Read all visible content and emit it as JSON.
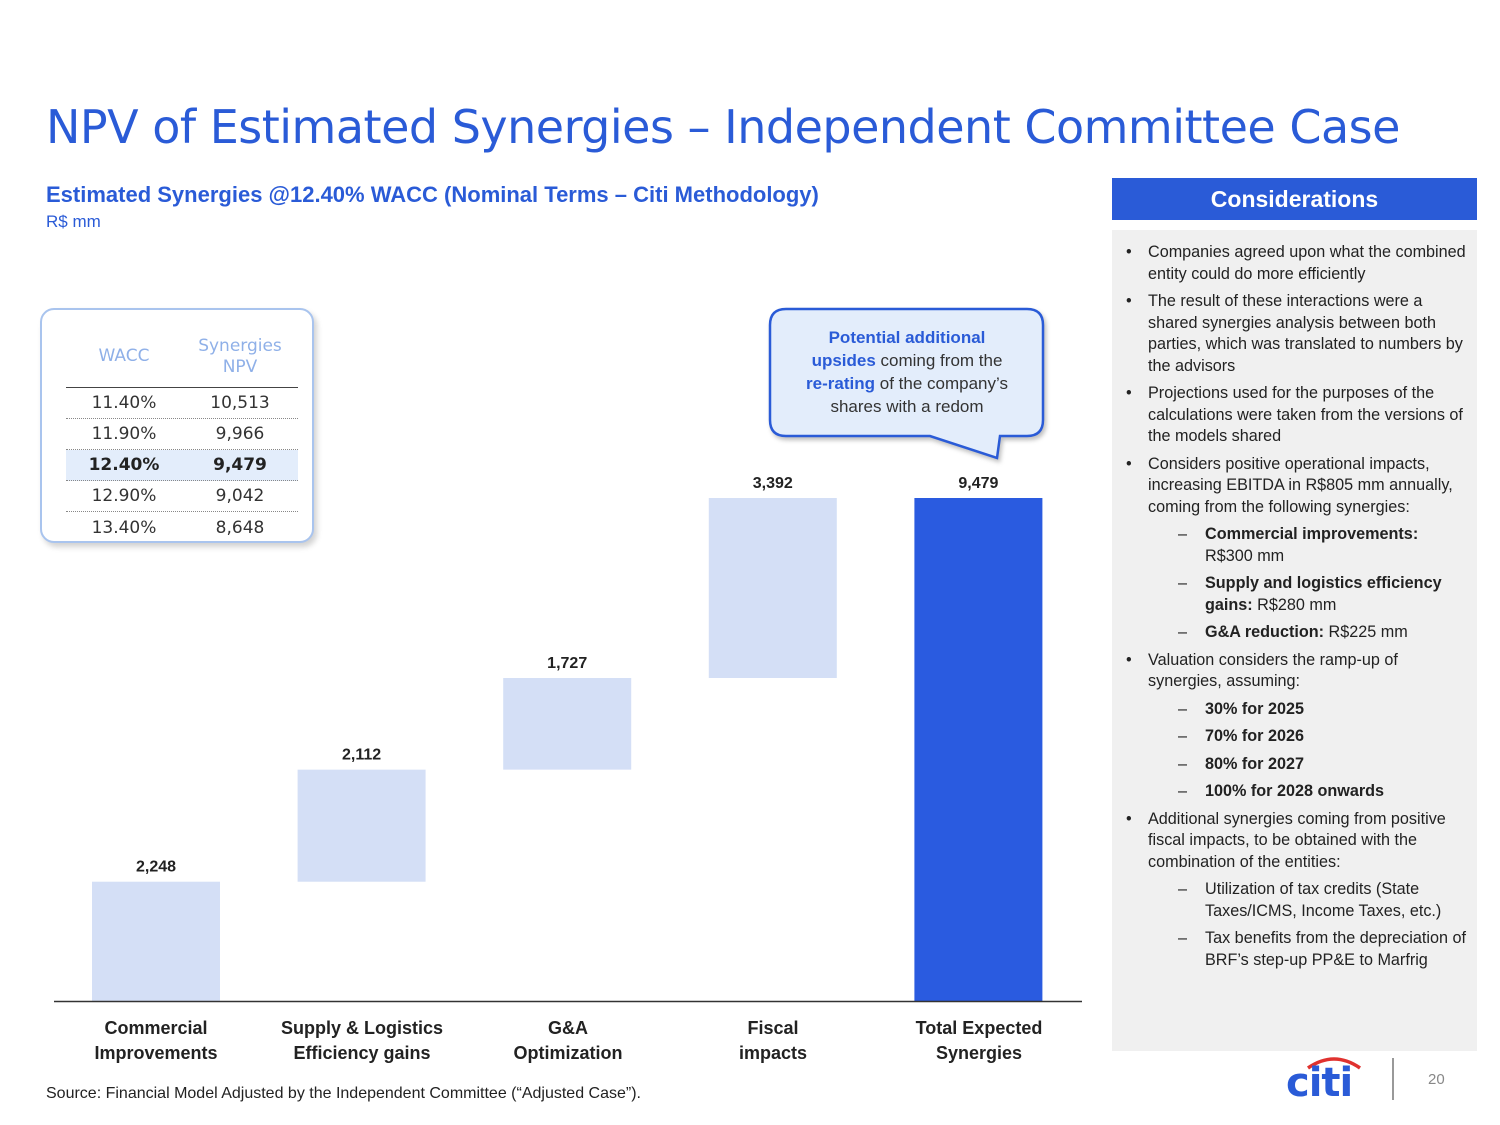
{
  "title": "NPV of Estimated Synergies – Independent Committee Case",
  "subtitle": "Estimated Synergies @12.40% WACC (Nominal Terms – Citi Methodology)",
  "unit": "R$ mm",
  "wacc_table": {
    "headers": [
      "WACC",
      "Synergies NPV"
    ],
    "rows": [
      {
        "wacc": "11.40%",
        "npv": "10,513"
      },
      {
        "wacc": "11.90%",
        "npv": "9,966"
      },
      {
        "wacc": "12.40%",
        "npv": "9,479"
      },
      {
        "wacc": "12.90%",
        "npv": "9,042"
      },
      {
        "wacc": "13.40%",
        "npv": "8,648"
      }
    ]
  },
  "callout": {
    "line1_bold": "Potential additional",
    "line2_bold": "upsides",
    "line2_rest": " coming from the",
    "line3_bold": "re-rating",
    "line3_rest": " of the company’s",
    "line4": "shares with a redom"
  },
  "chart_data": {
    "type": "bar",
    "subtype": "waterfall",
    "title": "Estimated Synergies @12.40% WACC (Nominal Terms – Citi Methodology)",
    "ylabel": "R$ mm",
    "categories": [
      "Commercial Improvements",
      "Supply & Logistics Efficiency gains",
      "G&A Optimization",
      "Fiscal impacts",
      "Total Expected Synergies"
    ],
    "category_lines": [
      [
        "Commercial",
        "Improvements"
      ],
      [
        "Supply & Logistics",
        "Efficiency gains"
      ],
      [
        "G&A",
        "Optimization"
      ],
      [
        "Fiscal",
        "impacts"
      ],
      [
        "Total Expected",
        "Synergies"
      ]
    ],
    "values": [
      2248,
      2112,
      1727,
      3392,
      9479
    ],
    "value_labels": [
      "2,248",
      "2,112",
      "1,727",
      "3,392",
      "9,479"
    ],
    "is_total": [
      false,
      false,
      false,
      false,
      true
    ],
    "ylim": [
      0,
      9479
    ],
    "colors": {
      "increment": "#d4dff6",
      "total": "#2a5be0"
    }
  },
  "considerations": {
    "header": "Considerations",
    "items": [
      {
        "type": "bullet",
        "text": "Companies agreed upon what the combined entity could do more efficiently"
      },
      {
        "type": "bullet",
        "text": "The result of these interactions were a shared synergies analysis between both parties, which was translated to numbers by the advisors"
      },
      {
        "type": "bullet",
        "text": "Projections used for the purposes of the calculations were taken from the versions of the models shared"
      },
      {
        "type": "bullet",
        "text": "Considers positive operational impacts, increasing EBITDA in R$805 mm annually, coming from the following synergies:"
      },
      {
        "type": "sub",
        "bold": "Commercial improvements:",
        "text": " R$300 mm"
      },
      {
        "type": "sub",
        "bold": "Supply and logistics efficiency gains:",
        "text": " R$280 mm"
      },
      {
        "type": "sub",
        "bold": "G&A reduction:",
        "text": " R$225 mm"
      },
      {
        "type": "bullet",
        "text": "Valuation considers the ramp-up of synergies, assuming:"
      },
      {
        "type": "sub",
        "bold": "30% for 2025",
        "text": ""
      },
      {
        "type": "sub",
        "bold": "70% for 2026",
        "text": ""
      },
      {
        "type": "sub",
        "bold": "80% for 2027",
        "text": ""
      },
      {
        "type": "sub",
        "bold": "100% for 2028 onwards",
        "text": ""
      },
      {
        "type": "bullet",
        "text": "Additional synergies coming from positive fiscal impacts, to be obtained with the combination of the entities:"
      },
      {
        "type": "sub",
        "bold": "",
        "text": "Utilization of tax credits (State Taxes/ICMS, Income Taxes, etc.)"
      },
      {
        "type": "sub",
        "bold": "",
        "text": "Tax benefits from the depreciation of BRF’s step-up PP&E to Marfrig"
      }
    ]
  },
  "source": "Source: Financial Model Adjusted by the Independent Committee (“Adjusted Case”).",
  "logo": "citi",
  "page_number": "20",
  "colors": {
    "accent": "#2a5bd7"
  }
}
